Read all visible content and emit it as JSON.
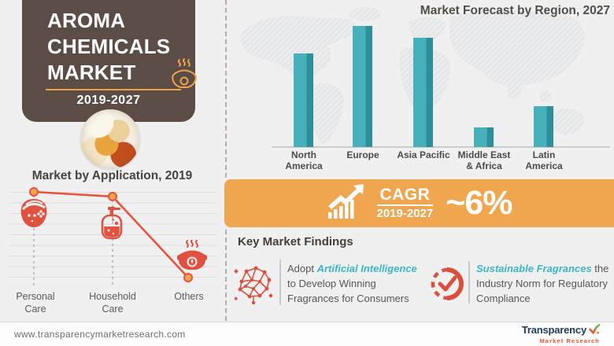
{
  "header_card": {
    "title_lines": [
      "AROMA",
      "CHEMICALS",
      "MARKET"
    ],
    "period": "2019-2027",
    "icon": "aroma-lamp-icon",
    "bg_color": "#5b4c45",
    "accent_color": "#eda24c"
  },
  "left_chart": {
    "title": "Market by Application, 2019",
    "label_lines": [
      [
        "Personal",
        "Care"
      ],
      [
        "Household",
        "Care"
      ],
      [
        "Others"
      ]
    ],
    "icons": [
      "facial-mask-icon",
      "soap-dispenser-icon",
      "aroma-burner-icon"
    ],
    "line_color": "#e8513c",
    "dot_color": "#f2a44e"
  },
  "region_chart": {
    "title": "Market Forecast by Region, 2027",
    "label_lines": [
      [
        "North",
        "America"
      ],
      [
        "Europe"
      ],
      [
        "Asia Pacific"
      ],
      [
        "Middle East",
        "& Africa"
      ],
      [
        "Latin",
        "America"
      ]
    ],
    "bar_color": "#45b0bc",
    "bar_shade_color": "#2e8f9a"
  },
  "cagr_banner": {
    "label": "CAGR",
    "period": "2019-2027",
    "value": "~6%",
    "icon": "growth-arrow-icon",
    "bg_color": "#f0a64e"
  },
  "findings": {
    "heading": "Key Market Findings",
    "highlight_color": "#3ab6c3",
    "icon_color": "#d9503f",
    "items": [
      {
        "icon": "ai-network-icon",
        "prefix": "Adopt ",
        "highlight": "Artificial Intelligence",
        "rest": " to Develop Winning Fragrances for Consumers"
      },
      {
        "icon": "check-circle-icon",
        "prefix": "",
        "highlight": "Sustainable Fragrances",
        "rest": " the Industry Norm for Regulatory Compliance"
      }
    ]
  },
  "footer": {
    "website": "www.transparencymarketresearch.com",
    "logo_name": "Transparency",
    "logo_sub": "Market Research",
    "logo_icon": "tmr-checkmark-icon"
  },
  "chart_data": [
    {
      "type": "bar",
      "title": "Market Forecast by Region, 2027",
      "categories": [
        "North America",
        "Europe",
        "Asia Pacific",
        "Middle East & Africa",
        "Latin America"
      ],
      "values": [
        77,
        100,
        90,
        16,
        34
      ],
      "unit": "relative index, % of tallest bar (no numeric axis shown)",
      "xlabel": "",
      "ylabel": "",
      "grid": false,
      "legend": false,
      "background": "hatched world map"
    },
    {
      "type": "line",
      "title": "Market by Application, 2019",
      "categories": [
        "Personal Care",
        "Household Care",
        "Others"
      ],
      "values": [
        100,
        95,
        8
      ],
      "unit": "relative index, % of highest point (no numeric axis shown)",
      "xlabel": "",
      "ylabel": "",
      "grid": true,
      "legend": false,
      "marker": "circle"
    }
  ]
}
